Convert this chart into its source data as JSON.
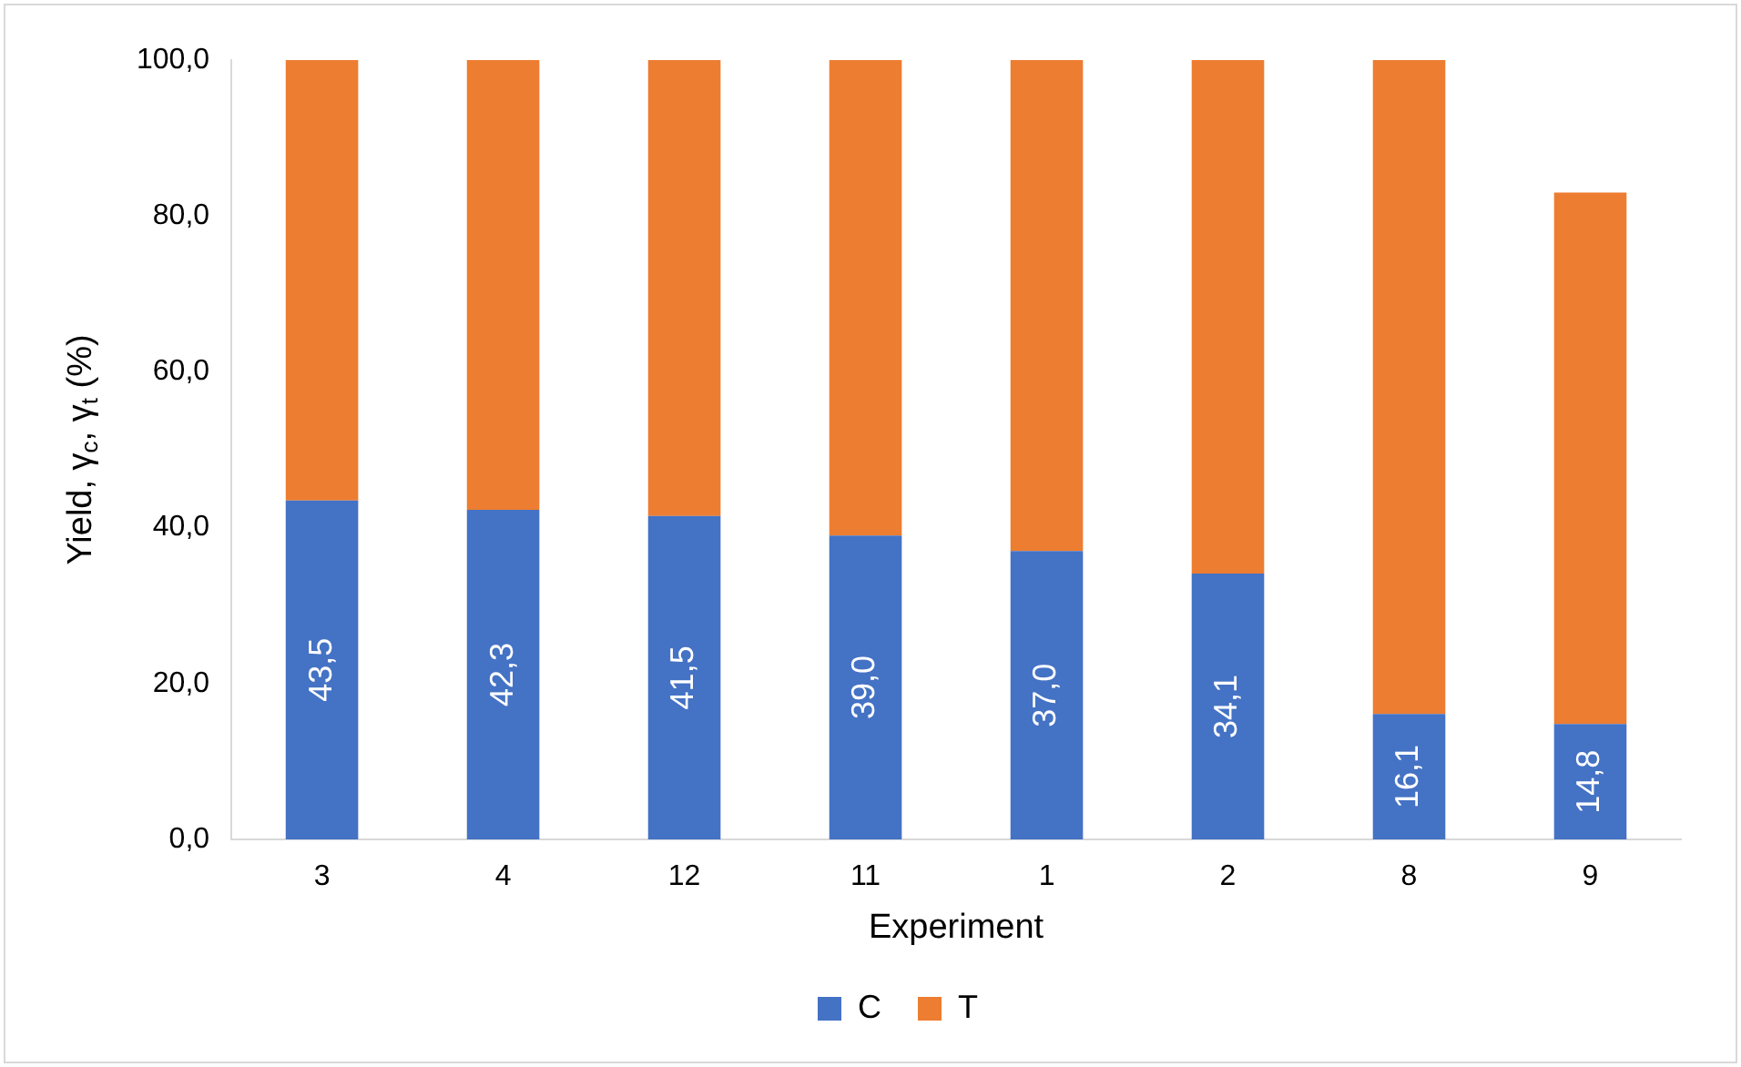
{
  "chart_data": {
    "type": "bar",
    "xlabel": "Experiment",
    "ylabel": "Yield, γ$_{c}$, γ$_{t}$ (%)",
    "categories": [
      "3",
      "4",
      "12",
      "11",
      "1",
      "2",
      "8",
      "9"
    ],
    "stacked": true,
    "grid": false,
    "legend": "bottom",
    "ylim": [
      0,
      100
    ],
    "yticks": [
      {
        "value": 0,
        "label": "0,0"
      },
      {
        "value": 20,
        "label": "20,0"
      },
      {
        "value": 40,
        "label": "40,0"
      },
      {
        "value": 60,
        "label": "60,0"
      },
      {
        "value": 80,
        "label": "80,0"
      },
      {
        "value": 100,
        "label": "100,0"
      }
    ],
    "series": [
      {
        "name": "C",
        "color": "#4472c4",
        "values": [
          43.5,
          42.3,
          41.5,
          39.0,
          37.0,
          34.1,
          16.1,
          14.8
        ],
        "value_labels": [
          "43,5",
          "42,3",
          "41,5",
          "39,0",
          "37,0",
          "34,1",
          "16,1",
          "14,8"
        ]
      },
      {
        "name": "T",
        "color": "#ed7d31",
        "values": [
          56.5,
          57.7,
          58.5,
          61.0,
          63.0,
          65.9,
          83.9,
          68.2
        ]
      }
    ]
  }
}
